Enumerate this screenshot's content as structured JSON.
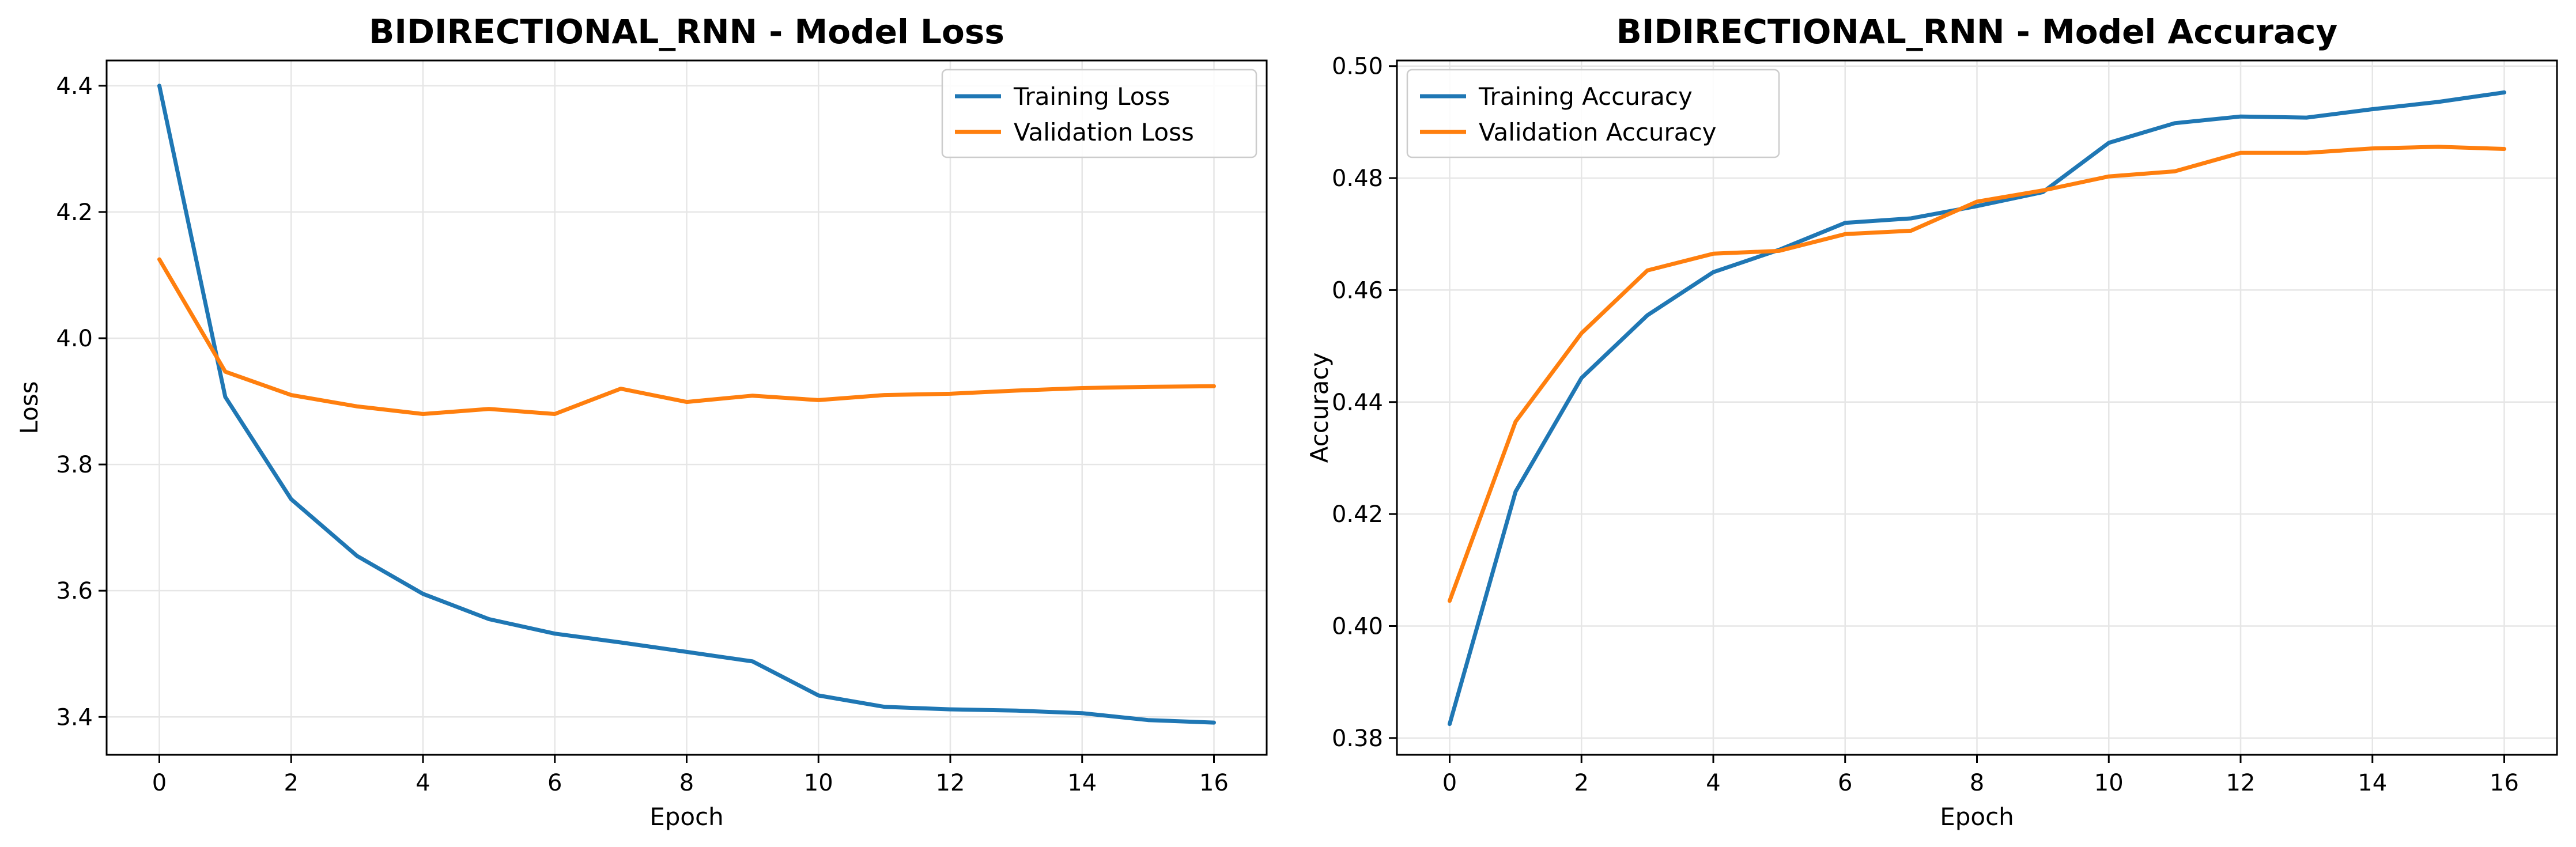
{
  "colors": {
    "training": "#1f77b4",
    "validation": "#ff7f0e"
  },
  "chart_data": [
    {
      "type": "line",
      "title": "BIDIRECTIONAL_RNN - Model Loss",
      "xlabel": "Epoch",
      "ylabel": "Loss",
      "xlim": [
        -0.8,
        16.8
      ],
      "ylim": [
        3.34,
        4.44
      ],
      "xticks": [
        0,
        2,
        4,
        6,
        8,
        10,
        12,
        14,
        16
      ],
      "yticks": [
        3.4,
        3.6,
        3.8,
        4.0,
        4.2,
        4.4
      ],
      "ytick_labels": [
        "3.4",
        "3.6",
        "3.8",
        "4.0",
        "4.2",
        "4.4"
      ],
      "grid": true,
      "legend_position": "upper right",
      "x": [
        0,
        1,
        2,
        3,
        4,
        5,
        6,
        7,
        8,
        9,
        10,
        11,
        12,
        13,
        14,
        15,
        16
      ],
      "series": [
        {
          "name": "Training Loss",
          "color_key": "training",
          "values": [
            4.4,
            3.907,
            3.745,
            3.655,
            3.595,
            3.555,
            3.532,
            3.518,
            3.503,
            3.488,
            3.434,
            3.416,
            3.412,
            3.41,
            3.406,
            3.395,
            3.391
          ]
        },
        {
          "name": "Validation Loss",
          "color_key": "validation",
          "values": [
            4.125,
            3.947,
            3.91,
            3.892,
            3.88,
            3.888,
            3.88,
            3.92,
            3.899,
            3.909,
            3.902,
            3.91,
            3.912,
            3.917,
            3.921,
            3.923,
            3.924
          ]
        }
      ]
    },
    {
      "type": "line",
      "title": "BIDIRECTIONAL_RNN - Model Accuracy",
      "xlabel": "Epoch",
      "ylabel": "Accuracy",
      "xlim": [
        -0.8,
        16.8
      ],
      "ylim": [
        0.377,
        0.501
      ],
      "xticks": [
        0,
        2,
        4,
        6,
        8,
        10,
        12,
        14,
        16
      ],
      "yticks": [
        0.38,
        0.4,
        0.42,
        0.44,
        0.46,
        0.48,
        0.5
      ],
      "ytick_labels": [
        "0.38",
        "0.40",
        "0.42",
        "0.44",
        "0.46",
        "0.48",
        "0.50"
      ],
      "grid": true,
      "legend_position": "upper left",
      "x": [
        0,
        1,
        2,
        3,
        4,
        5,
        6,
        7,
        8,
        9,
        10,
        11,
        12,
        13,
        14,
        15,
        16
      ],
      "series": [
        {
          "name": "Training Accuracy",
          "color_key": "training",
          "values": [
            0.3825,
            0.424,
            0.4443,
            0.4555,
            0.4632,
            0.4672,
            0.472,
            0.4728,
            0.475,
            0.4775,
            0.4863,
            0.4898,
            0.491,
            0.4908,
            0.4923,
            0.4936,
            0.4953
          ]
        },
        {
          "name": "Validation Accuracy",
          "color_key": "validation",
          "values": [
            0.4045,
            0.4365,
            0.4523,
            0.4635,
            0.4665,
            0.467,
            0.47,
            0.4706,
            0.4758,
            0.4778,
            0.4803,
            0.4812,
            0.4845,
            0.4845,
            0.4853,
            0.4856,
            0.4852
          ]
        }
      ]
    }
  ]
}
